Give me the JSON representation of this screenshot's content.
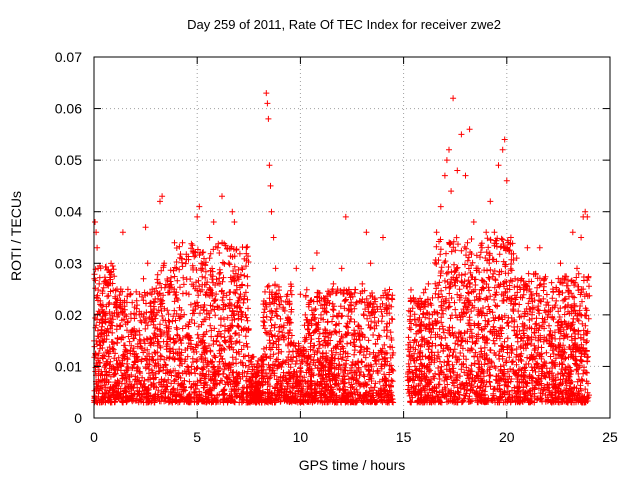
{
  "chart_data": {
    "type": "scatter",
    "title": "Day 259 of 2011, Rate Of TEC Index for receiver zwe2",
    "xlabel": "GPS time / hours",
    "ylabel": "ROTI / TECUs",
    "xlim": [
      0,
      25
    ],
    "ylim": [
      0,
      0.07
    ],
    "xticks": [
      "0",
      "5",
      "10",
      "15",
      "20",
      "25"
    ],
    "yticks": [
      "0",
      "0.01",
      "0.02",
      "0.03",
      "0.04",
      "0.05",
      "0.06",
      "0.07"
    ],
    "grid": true,
    "marker": "+",
    "color": "#ff0000",
    "series": [
      {
        "points": [
          [
            0.05,
            0.038
          ],
          [
            0.1,
            0.036
          ],
          [
            0.15,
            0.033
          ],
          [
            0.2,
            0.029
          ],
          [
            0.25,
            0.026
          ],
          [
            0.3,
            0.022
          ],
          [
            0.35,
            0.019
          ],
          [
            0.4,
            0.015
          ],
          [
            0.5,
            0.012
          ],
          [
            0.6,
            0.009
          ],
          [
            0.7,
            0.007
          ],
          [
            0.8,
            0.006
          ],
          [
            0.9,
            0.005
          ],
          [
            1.0,
            0.004
          ],
          [
            1.1,
            0.005
          ],
          [
            1.2,
            0.007
          ],
          [
            1.3,
            0.025
          ],
          [
            1.4,
            0.036
          ],
          [
            1.5,
            0.02
          ],
          [
            1.6,
            0.017
          ],
          [
            1.8,
            0.014
          ],
          [
            2.0,
            0.011
          ],
          [
            2.2,
            0.009
          ],
          [
            2.4,
            0.027
          ],
          [
            2.5,
            0.037
          ],
          [
            2.6,
            0.03
          ],
          [
            2.8,
            0.024
          ],
          [
            3.0,
            0.02
          ],
          [
            3.2,
            0.042
          ],
          [
            3.3,
            0.043
          ],
          [
            3.4,
            0.03
          ],
          [
            3.5,
            0.018
          ],
          [
            3.7,
            0.013
          ],
          [
            3.9,
            0.034
          ],
          [
            4.0,
            0.029
          ],
          [
            4.2,
            0.015
          ],
          [
            4.4,
            0.011
          ],
          [
            4.6,
            0.024
          ],
          [
            4.8,
            0.032
          ],
          [
            5.0,
            0.039
          ],
          [
            5.1,
            0.041
          ],
          [
            5.2,
            0.03
          ],
          [
            5.4,
            0.024
          ],
          [
            5.6,
            0.035
          ],
          [
            5.8,
            0.038
          ],
          [
            6.0,
            0.033
          ],
          [
            6.1,
            0.026
          ],
          [
            6.2,
            0.043
          ],
          [
            6.3,
            0.022
          ],
          [
            6.5,
            0.017
          ],
          [
            6.7,
            0.04
          ],
          [
            6.8,
            0.038
          ],
          [
            7.0,
            0.02
          ],
          [
            7.2,
            0.008
          ],
          [
            7.4,
            0.005
          ],
          [
            7.6,
            0.004
          ],
          [
            7.8,
            0.005
          ],
          [
            8.0,
            0.007
          ],
          [
            8.2,
            0.012
          ],
          [
            8.35,
            0.063
          ],
          [
            8.4,
            0.061
          ],
          [
            8.45,
            0.058
          ],
          [
            8.5,
            0.049
          ],
          [
            8.55,
            0.045
          ],
          [
            8.6,
            0.04
          ],
          [
            8.7,
            0.035
          ],
          [
            8.8,
            0.029
          ],
          [
            9.0,
            0.022
          ],
          [
            9.2,
            0.018
          ],
          [
            9.4,
            0.014
          ],
          [
            9.6,
            0.011
          ],
          [
            9.8,
            0.029
          ],
          [
            10.0,
            0.024
          ],
          [
            10.2,
            0.018
          ],
          [
            10.4,
            0.022
          ],
          [
            10.6,
            0.029
          ],
          [
            10.8,
            0.032
          ],
          [
            11.0,
            0.02
          ],
          [
            11.2,
            0.014
          ],
          [
            11.4,
            0.008
          ],
          [
            11.6,
            0.026
          ],
          [
            11.8,
            0.025
          ],
          [
            12.0,
            0.029
          ],
          [
            12.2,
            0.039
          ],
          [
            12.4,
            0.021
          ],
          [
            12.6,
            0.017
          ],
          [
            12.8,
            0.011
          ],
          [
            13.0,
            0.026
          ],
          [
            13.2,
            0.036
          ],
          [
            13.4,
            0.03
          ],
          [
            13.6,
            0.023
          ],
          [
            13.8,
            0.016
          ],
          [
            14.0,
            0.035
          ],
          [
            14.2,
            0.017
          ],
          [
            14.4,
            0.005
          ],
          [
            15.2,
            0.008
          ],
          [
            15.4,
            0.012
          ],
          [
            15.6,
            0.018
          ],
          [
            15.8,
            0.013
          ],
          [
            16.0,
            0.01
          ],
          [
            16.2,
            0.026
          ],
          [
            16.4,
            0.018
          ],
          [
            16.6,
            0.036
          ],
          [
            16.8,
            0.041
          ],
          [
            17.0,
            0.047
          ],
          [
            17.1,
            0.05
          ],
          [
            17.2,
            0.052
          ],
          [
            17.3,
            0.044
          ],
          [
            17.4,
            0.062
          ],
          [
            17.6,
            0.048
          ],
          [
            17.8,
            0.055
          ],
          [
            18.0,
            0.047
          ],
          [
            18.2,
            0.056
          ],
          [
            18.4,
            0.038
          ],
          [
            18.6,
            0.029
          ],
          [
            18.8,
            0.033
          ],
          [
            19.0,
            0.036
          ],
          [
            19.2,
            0.042
          ],
          [
            19.4,
            0.036
          ],
          [
            19.6,
            0.049
          ],
          [
            19.8,
            0.052
          ],
          [
            19.9,
            0.054
          ],
          [
            20.0,
            0.046
          ],
          [
            20.2,
            0.035
          ],
          [
            20.4,
            0.027
          ],
          [
            20.6,
            0.022
          ],
          [
            20.8,
            0.017
          ],
          [
            21.0,
            0.033
          ],
          [
            21.2,
            0.024
          ],
          [
            21.4,
            0.028
          ],
          [
            21.6,
            0.033
          ],
          [
            21.8,
            0.026
          ],
          [
            22.0,
            0.02
          ],
          [
            22.2,
            0.016
          ],
          [
            22.4,
            0.025
          ],
          [
            22.6,
            0.03
          ],
          [
            22.8,
            0.023
          ],
          [
            23.0,
            0.018
          ],
          [
            23.2,
            0.036
          ],
          [
            23.4,
            0.029
          ],
          [
            23.6,
            0.035
          ],
          [
            23.7,
            0.039
          ],
          [
            23.8,
            0.04
          ],
          [
            23.9,
            0.039
          ]
        ]
      }
    ]
  }
}
